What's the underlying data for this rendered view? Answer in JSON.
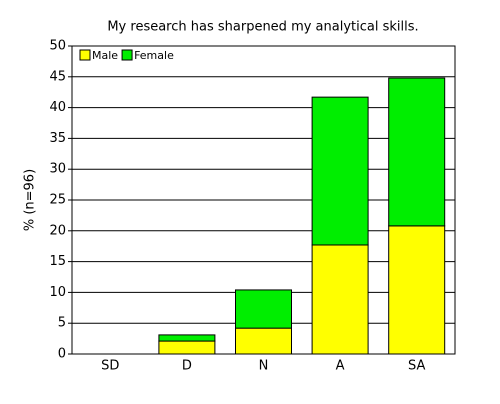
{
  "chart_data": {
    "type": "stacked_bar",
    "title": "My research has sharpened my analytical skills.",
    "y_label": "% (n=96)",
    "categories": [
      "SD",
      "D",
      "N",
      "A",
      "SA"
    ],
    "series": [
      {
        "name": "Male",
        "color": "#ffff00",
        "values": [
          0,
          2.1,
          4.2,
          17.7,
          20.8
        ]
      },
      {
        "name": "Female",
        "color": "#00ee00",
        "values": [
          0,
          1.0,
          6.2,
          24.0,
          24.0
        ]
      }
    ],
    "ylim": [
      0,
      50
    ],
    "yticks": [
      0,
      5,
      10,
      15,
      20,
      25,
      30,
      35,
      40,
      45,
      50
    ],
    "grid": true,
    "legend": "top-left"
  }
}
